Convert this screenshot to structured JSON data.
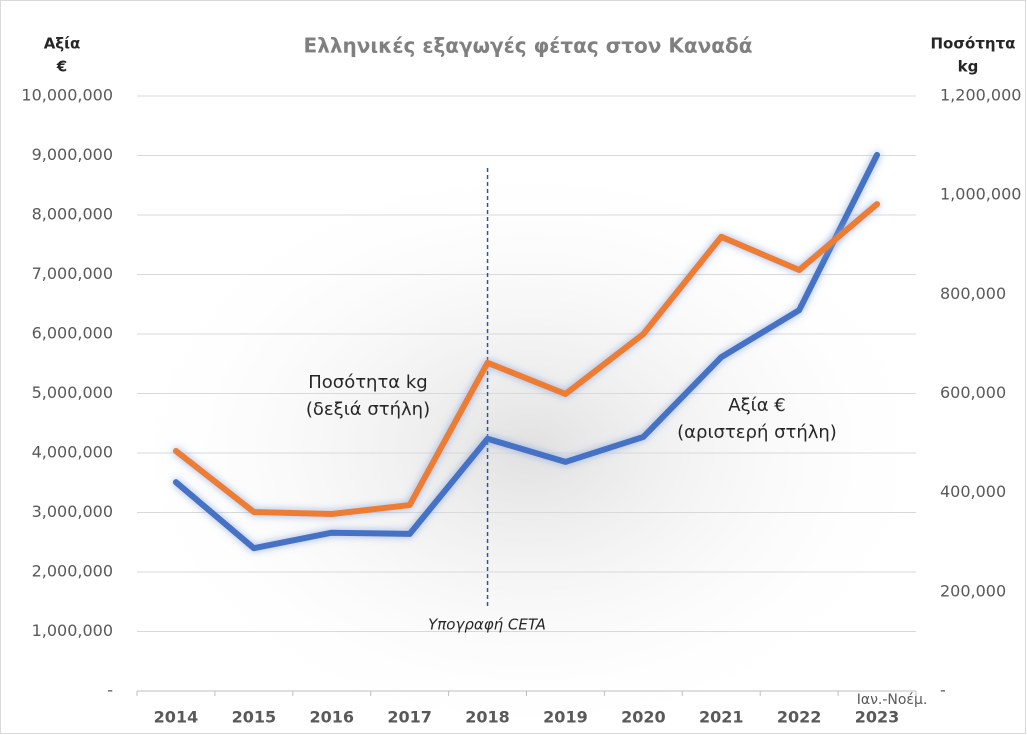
{
  "chart_data": {
    "type": "line",
    "title": "Ελληνικές εξαγωγές φέτας στον Καναδά",
    "y_label": [
      "Αξία",
      "€"
    ],
    "y2_label": [
      "Ποσότητα",
      "kg"
    ],
    "categories": [
      "2014",
      "2015",
      "2016",
      "2017",
      "2018",
      "2019",
      "2020",
      "2021",
      "2022",
      "2023"
    ],
    "last_category_note": "Ιαν.-Νοέμ.",
    "series": [
      {
        "color": "#4472c4",
        "values": [
          3510000,
          2400000,
          2660000,
          2640000,
          4240000,
          3850000,
          4270000,
          5610000,
          6400000,
          9010000
        ]
      },
      {
        "color": "#ed7d31",
        "axis": "y2",
        "values": [
          484000,
          361000,
          357000,
          375000,
          662000,
          599000,
          720000,
          916000,
          849000,
          982000
        ]
      }
    ],
    "ylim": [
      0,
      10000000
    ],
    "yticks": [
      {
        "value": 0,
        "label": "-"
      },
      {
        "value": 1000000,
        "label": "1,000,000"
      },
      {
        "value": 2000000,
        "label": "2,000,000"
      },
      {
        "value": 3000000,
        "label": "3,000,000"
      },
      {
        "value": 4000000,
        "label": "4,000,000"
      },
      {
        "value": 5000000,
        "label": "5,000,000"
      },
      {
        "value": 6000000,
        "label": "6,000,000"
      },
      {
        "value": 7000000,
        "label": "7,000,000"
      },
      {
        "value": 8000000,
        "label": "8,000,000"
      },
      {
        "value": 9000000,
        "label": "9,000,000"
      },
      {
        "value": 10000000,
        "label": "10,000,000"
      }
    ],
    "y2lim": [
      0,
      1200000
    ],
    "y2ticks": [
      {
        "value": 0,
        "label": "-"
      },
      {
        "value": 200000,
        "label": "200,000"
      },
      {
        "value": 400000,
        "label": "400,000"
      },
      {
        "value": 600000,
        "label": "600,000"
      },
      {
        "value": 800000,
        "label": "800,000"
      },
      {
        "value": 1000000,
        "label": "1,000,000"
      },
      {
        "value": 1200000,
        "label": "1,200,000"
      }
    ],
    "grid": true,
    "annotations": [
      {
        "lines": [
          "Ποσότητα kg",
          "(δεξιά στήλη)"
        ]
      },
      {
        "lines": [
          "Αξία €",
          "(αριστερή στήλη)"
        ]
      },
      {
        "lines": [
          "Υπογραφή CETA"
        ]
      }
    ]
  }
}
